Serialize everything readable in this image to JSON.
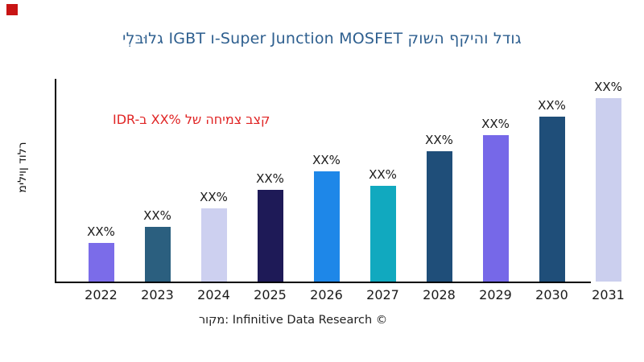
{
  "corner_mark_color": "#c81414",
  "chart_data": {
    "type": "bar",
    "title": "ילְבּוּלג IGBT ו-Super Junction MOSFET קושה ףקיהו לדוג",
    "title_color": "#2e5f8f",
    "ylabel": "מיליון דולר",
    "annotation": {
      "text": "IDR-ב XX% לש החימצ בצק",
      "color": "#e02424"
    },
    "categories": [
      "2022",
      "2023",
      "2024",
      "2025",
      "2026",
      "2027",
      "2028",
      "2029",
      "2030",
      "2031"
    ],
    "bar_labels": [
      "XX%",
      "XX%",
      "XX%",
      "XX%",
      "XX%",
      "XX%",
      "XX%",
      "XX%",
      "XX%",
      "XX%"
    ],
    "values_pct_of_max": [
      21,
      30,
      40,
      50,
      60,
      52,
      71,
      80,
      90,
      100
    ],
    "bar_colors": [
      "#7b6ce9",
      "#2b5f7f",
      "#cdd0f0",
      "#1e1a57",
      "#1e87e8",
      "#11a9bf",
      "#1f4e79",
      "#7668e8",
      "#1f4e79",
      "#cbcfee"
    ],
    "axis_color": "#000000",
    "label_color": "#1a1a1a",
    "legend": "none",
    "gridlines": false,
    "source": "רוקמ: Infinitive Data Research ©"
  }
}
